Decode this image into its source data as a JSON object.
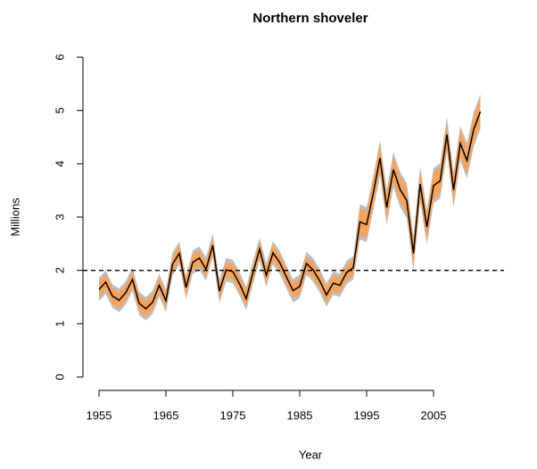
{
  "chart_data": {
    "type": "line",
    "title": "Northern shoveler",
    "x_label": "Year",
    "y_label": "Millions",
    "x": [
      1955,
      1956,
      1957,
      1958,
      1959,
      1960,
      1961,
      1962,
      1963,
      1964,
      1965,
      1966,
      1967,
      1968,
      1969,
      1970,
      1971,
      1972,
      1973,
      1974,
      1975,
      1976,
      1977,
      1978,
      1979,
      1980,
      1981,
      1982,
      1983,
      1984,
      1985,
      1986,
      1987,
      1988,
      1989,
      1990,
      1991,
      1992,
      1993,
      1994,
      1995,
      1996,
      1997,
      1998,
      1999,
      2000,
      2001,
      2002,
      2003,
      2004,
      2005,
      2006,
      2007,
      2008,
      2009,
      2010,
      2011,
      2012
    ],
    "values": [
      1.64,
      1.78,
      1.52,
      1.44,
      1.58,
      1.83,
      1.38,
      1.28,
      1.4,
      1.72,
      1.43,
      2.12,
      2.32,
      1.68,
      2.15,
      2.23,
      2.02,
      2.47,
      1.61,
      2.01,
      1.98,
      1.75,
      1.47,
      1.95,
      2.4,
      1.91,
      2.33,
      2.15,
      1.88,
      1.62,
      1.7,
      2.13,
      2.01,
      1.8,
      1.54,
      1.76,
      1.72,
      1.96,
      2.05,
      2.91,
      2.86,
      3.45,
      4.11,
      3.18,
      3.89,
      3.52,
      3.31,
      2.32,
      3.62,
      2.81,
      3.59,
      3.68,
      4.55,
      3.51,
      4.38,
      4.06,
      4.64,
      4.98
    ],
    "color": "#000000",
    "bands": [
      {
        "color": "#bebebe",
        "lower": [
          1.42,
          1.56,
          1.3,
          1.22,
          1.36,
          1.61,
          1.16,
          1.06,
          1.18,
          1.5,
          1.21,
          1.9,
          2.1,
          1.46,
          1.93,
          2.01,
          1.8,
          2.25,
          1.39,
          1.79,
          1.76,
          1.53,
          1.25,
          1.73,
          2.18,
          1.69,
          2.11,
          1.93,
          1.66,
          1.4,
          1.48,
          1.91,
          1.79,
          1.58,
          1.32,
          1.54,
          1.5,
          1.74,
          1.83,
          2.58,
          2.53,
          3.12,
          3.78,
          2.85,
          3.56,
          3.19,
          2.98,
          1.99,
          3.29,
          2.48,
          3.26,
          3.35,
          4.22,
          3.18,
          4.05,
          3.73,
          4.31,
          4.65
        ],
        "upper": [
          1.86,
          2.0,
          1.74,
          1.66,
          1.8,
          2.05,
          1.6,
          1.5,
          1.62,
          1.94,
          1.65,
          2.34,
          2.54,
          1.9,
          2.37,
          2.45,
          2.24,
          2.69,
          1.83,
          2.23,
          2.2,
          1.97,
          1.69,
          2.17,
          2.62,
          2.13,
          2.55,
          2.37,
          2.1,
          1.84,
          1.92,
          2.35,
          2.23,
          2.02,
          1.76,
          1.98,
          1.94,
          2.18,
          2.27,
          3.24,
          3.19,
          3.78,
          4.44,
          3.51,
          4.22,
          3.85,
          3.64,
          2.65,
          3.95,
          3.14,
          3.92,
          4.01,
          4.88,
          3.84,
          4.71,
          4.39,
          4.97,
          5.31
        ]
      },
      {
        "color": "#f4a460",
        "lower": [
          1.49,
          1.63,
          1.37,
          1.29,
          1.43,
          1.68,
          1.23,
          1.13,
          1.25,
          1.57,
          1.28,
          1.97,
          2.17,
          1.53,
          2.0,
          2.08,
          1.87,
          2.32,
          1.46,
          1.86,
          1.83,
          1.6,
          1.32,
          1.8,
          2.25,
          1.76,
          2.18,
          2.0,
          1.73,
          1.47,
          1.55,
          1.98,
          1.86,
          1.65,
          1.39,
          1.61,
          1.57,
          1.81,
          1.9,
          2.66,
          2.61,
          3.2,
          3.86,
          2.93,
          3.64,
          3.27,
          3.06,
          2.07,
          3.37,
          2.56,
          3.34,
          3.43,
          4.3,
          3.26,
          4.13,
          3.81,
          4.39,
          4.73
        ],
        "upper": [
          1.79,
          1.93,
          1.67,
          1.59,
          1.73,
          1.98,
          1.53,
          1.43,
          1.55,
          1.87,
          1.58,
          2.27,
          2.47,
          1.83,
          2.3,
          2.38,
          2.17,
          2.62,
          1.76,
          2.16,
          2.13,
          1.9,
          1.62,
          2.1,
          2.55,
          2.06,
          2.48,
          2.3,
          2.03,
          1.77,
          1.85,
          2.28,
          2.16,
          1.95,
          1.69,
          1.91,
          1.87,
          2.11,
          2.2,
          3.16,
          3.11,
          3.7,
          4.36,
          3.43,
          4.14,
          3.77,
          3.56,
          2.57,
          3.87,
          3.06,
          3.84,
          3.93,
          4.8,
          3.76,
          4.63,
          4.31,
          4.89,
          5.23
        ]
      }
    ],
    "hline": {
      "value": 2,
      "style": "dashed",
      "color": "#000000"
    },
    "xlim": [
      1955,
      2012
    ],
    "xticks": [
      1955,
      1965,
      1975,
      1985,
      1995,
      2005
    ],
    "ylim": [
      0,
      6
    ],
    "yticks": [
      0,
      1,
      2,
      3,
      4,
      5,
      6
    ],
    "grid": false
  }
}
